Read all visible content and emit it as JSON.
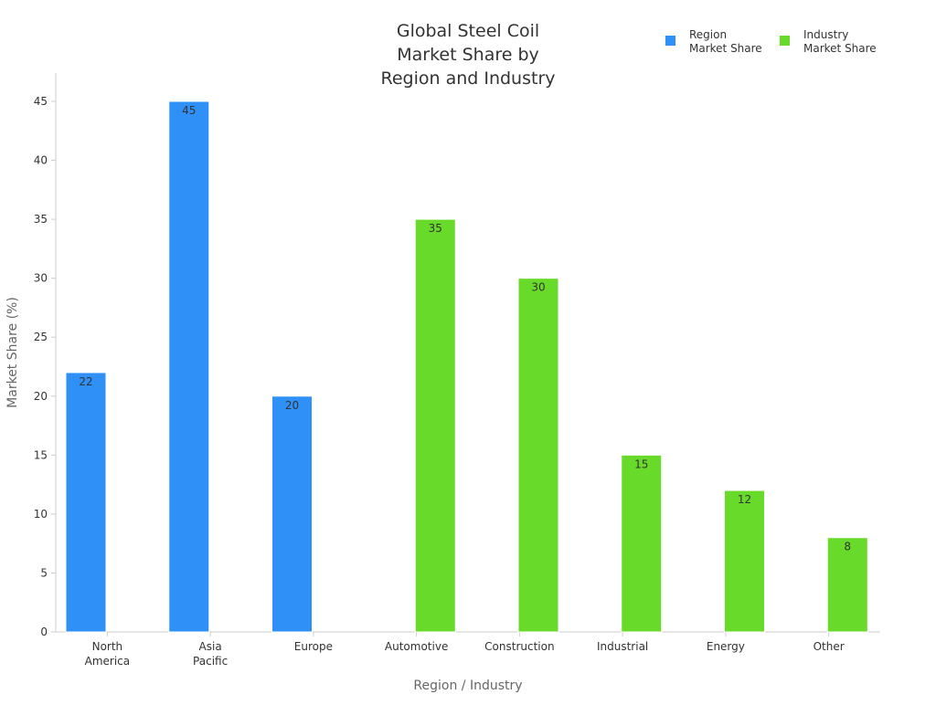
{
  "chart_data": {
    "type": "bar",
    "title_lines": [
      "Global Steel Coil",
      "Market Share by",
      "Region and Industry"
    ],
    "xlabel": "Region / Industry",
    "ylabel": "Market Share (%)",
    "ylim": [
      0,
      47.5
    ],
    "yticks": [
      0,
      5,
      10,
      15,
      20,
      25,
      30,
      35,
      40,
      45
    ],
    "grid": false,
    "legend_position": "top-right",
    "categories": [
      [
        "North",
        "America"
      ],
      [
        "Asia",
        "Pacific"
      ],
      [
        "Europe"
      ],
      [
        "Automotive"
      ],
      [
        "Construction"
      ],
      [
        "Industrial"
      ],
      [
        "Energy"
      ],
      [
        "Other"
      ]
    ],
    "series": [
      {
        "name_lines": [
          "Region",
          "Market Share"
        ],
        "color": "#2f90f7",
        "values": [
          22,
          45,
          20,
          0,
          0,
          0,
          0,
          0
        ]
      },
      {
        "name_lines": [
          "Industry",
          "Market Share"
        ],
        "color": "#67da2a",
        "values": [
          0,
          0,
          0,
          35,
          30,
          15,
          12,
          8
        ]
      }
    ]
  }
}
